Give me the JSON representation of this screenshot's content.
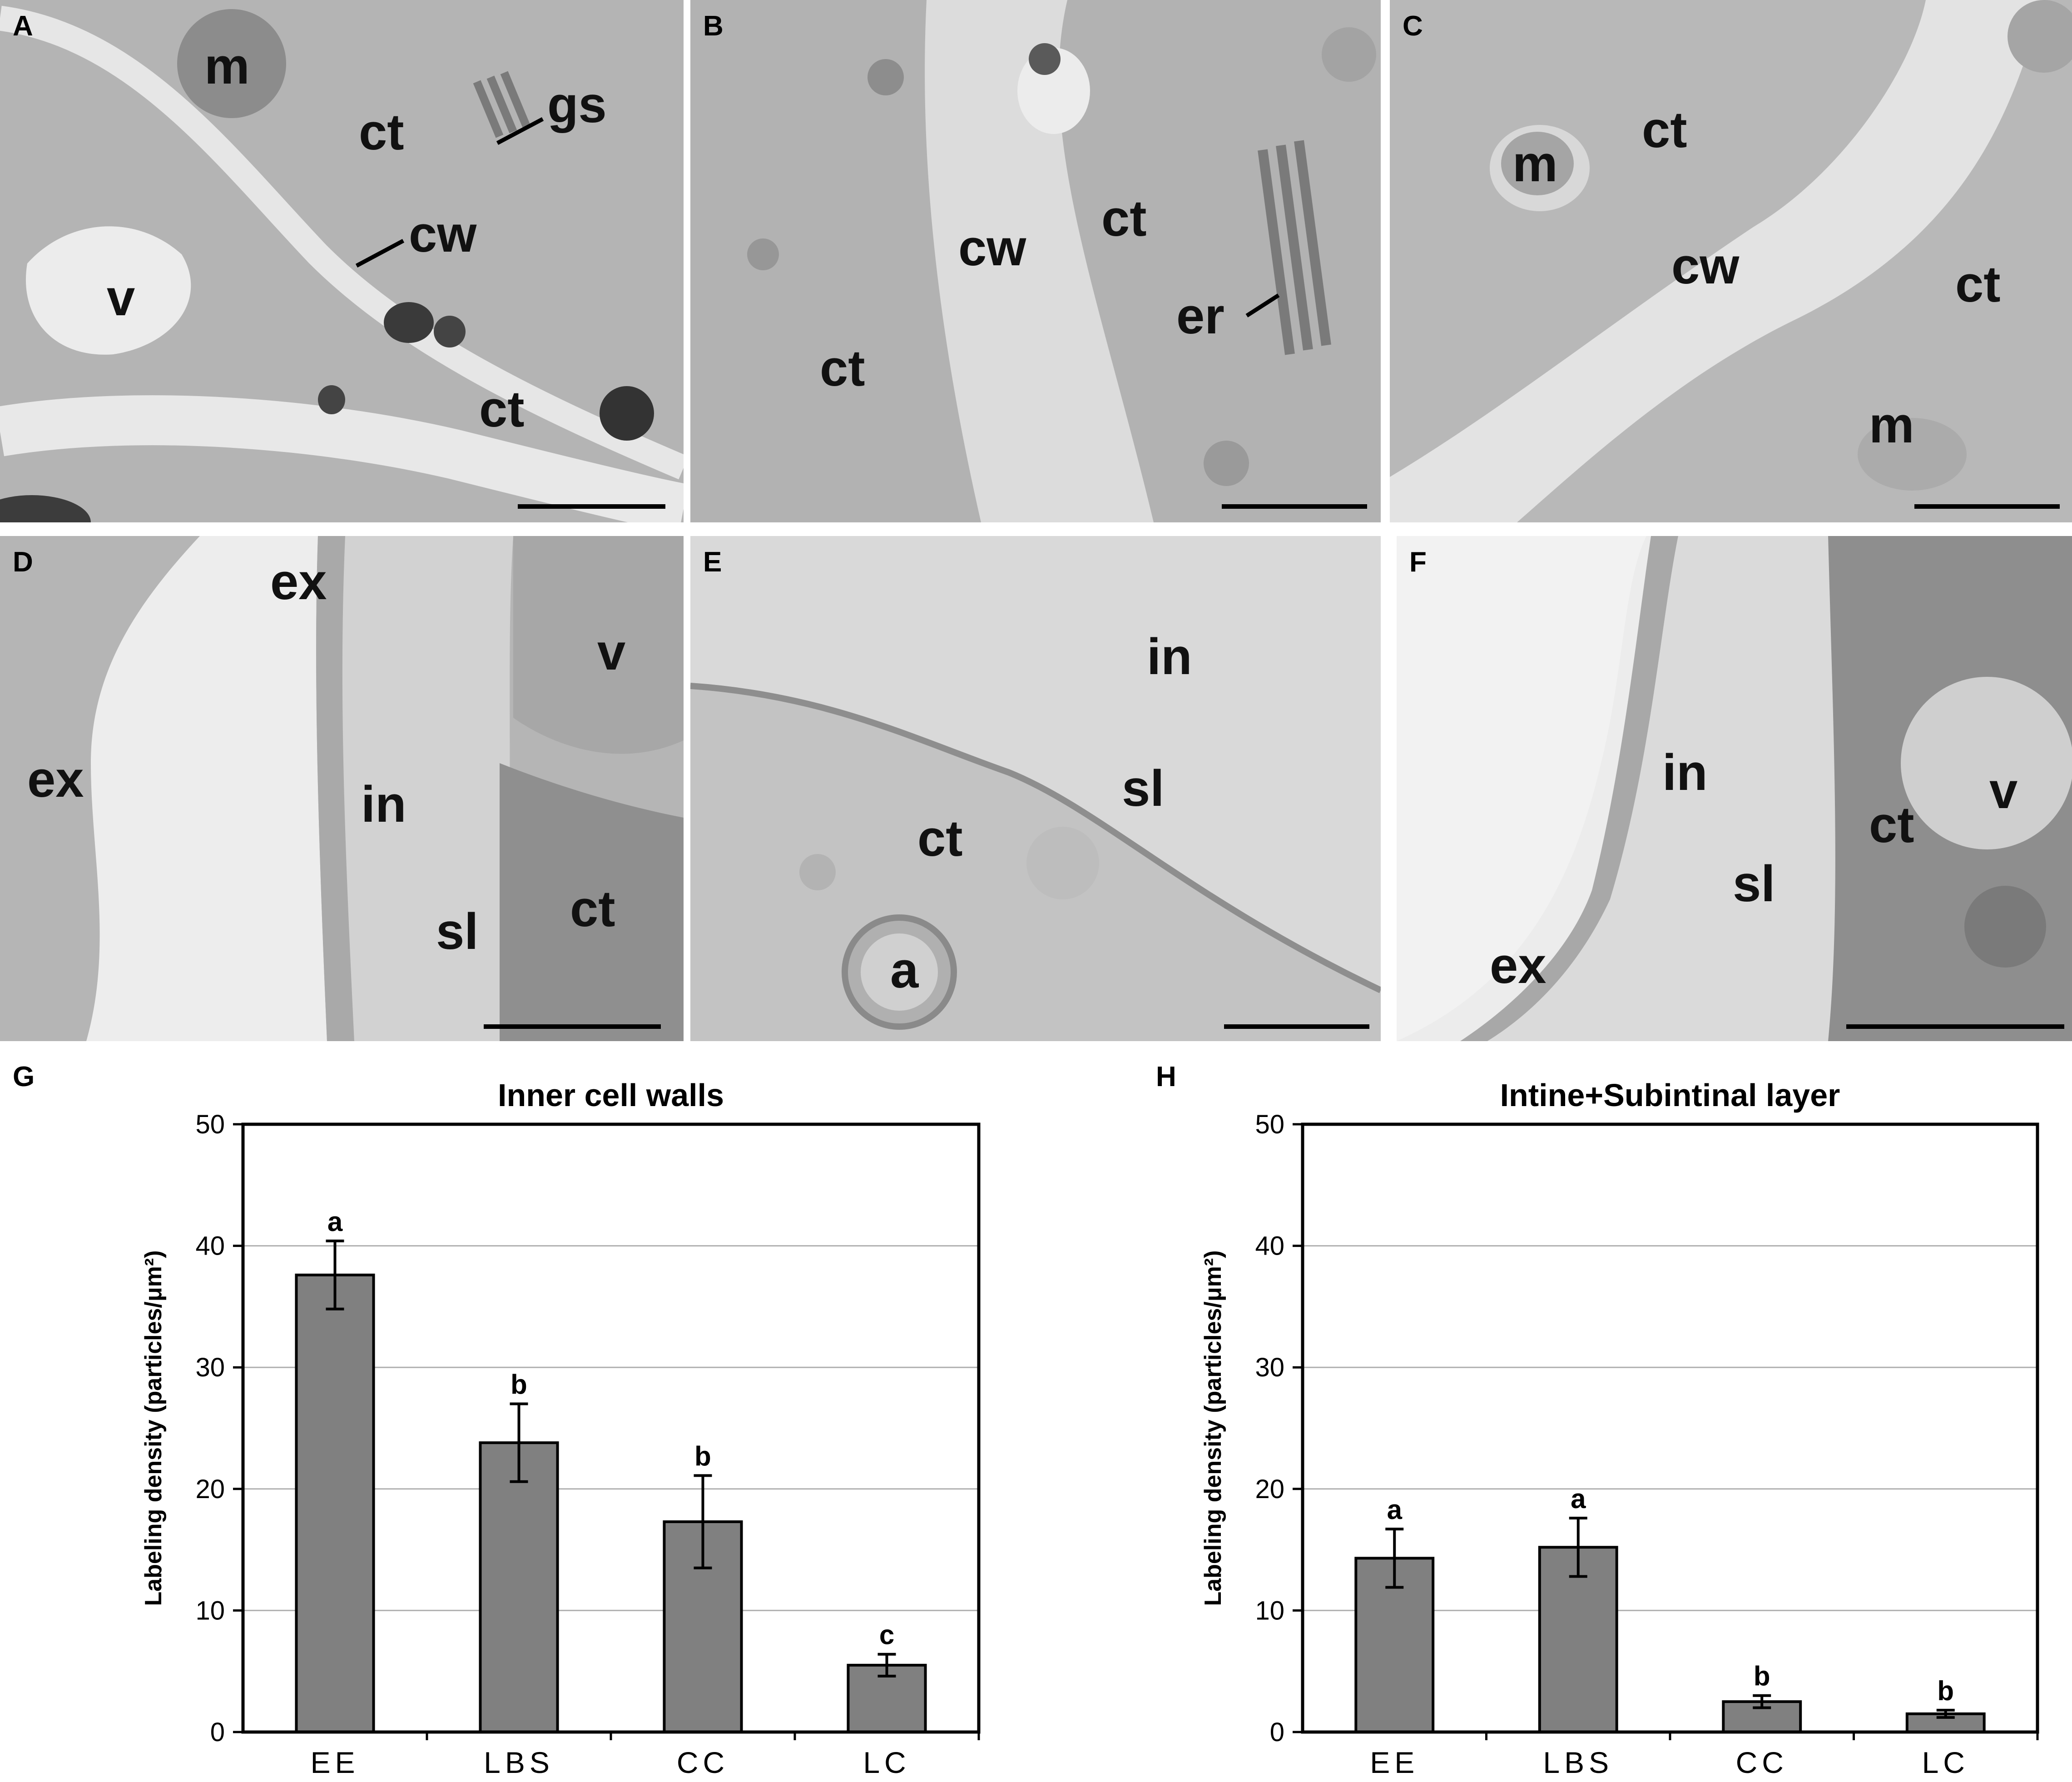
{
  "panels": [
    {
      "id": "A",
      "labels": [
        "m",
        "gs",
        "ct",
        "cw",
        "v",
        "ct"
      ]
    },
    {
      "id": "B",
      "labels": [
        "ct",
        "cw",
        "er",
        "ct"
      ]
    },
    {
      "id": "C",
      "labels": [
        "ct",
        "m",
        "cw",
        "ct",
        "m"
      ]
    },
    {
      "id": "D",
      "labels": [
        "ex",
        "v",
        "ex",
        "in",
        "sl",
        "ct"
      ]
    },
    {
      "id": "E",
      "labels": [
        "in",
        "sl",
        "ct",
        "a"
      ]
    },
    {
      "id": "F",
      "labels": [
        "in",
        "ct",
        "v",
        "sl",
        "ex"
      ]
    }
  ],
  "chart_data": [
    {
      "panel": "G",
      "type": "bar",
      "title": "Inner cell walls",
      "ylabel": "Labeling density (particles/μm²)",
      "xlabel": "",
      "categories": [
        "EE",
        "LBS",
        "CC",
        "LC"
      ],
      "values": [
        37.6,
        23.8,
        17.3,
        5.5
      ],
      "errors": [
        2.8,
        3.2,
        3.8,
        0.9
      ],
      "significance": [
        "a",
        "b",
        "b",
        "c"
      ],
      "ylim": [
        0,
        50
      ],
      "yticks": [
        "0",
        "10",
        "20",
        "30",
        "40",
        "50"
      ],
      "grid": true,
      "bar_color": "#808080"
    },
    {
      "panel": "H",
      "type": "bar",
      "title": "Intine+Subintinal layer",
      "ylabel": "Labeling density (particles/μm²)",
      "xlabel": "",
      "categories": [
        "EE",
        "LBS",
        "CC",
        "LC"
      ],
      "values": [
        14.3,
        15.2,
        2.5,
        1.5
      ],
      "errors": [
        2.4,
        2.4,
        0.5,
        0.3
      ],
      "significance": [
        "a",
        "a",
        "b",
        "b"
      ],
      "ylim": [
        0,
        50
      ],
      "yticks": [
        "0",
        "10",
        "20",
        "30",
        "40",
        "50"
      ],
      "grid": true,
      "bar_color": "#808080"
    }
  ]
}
